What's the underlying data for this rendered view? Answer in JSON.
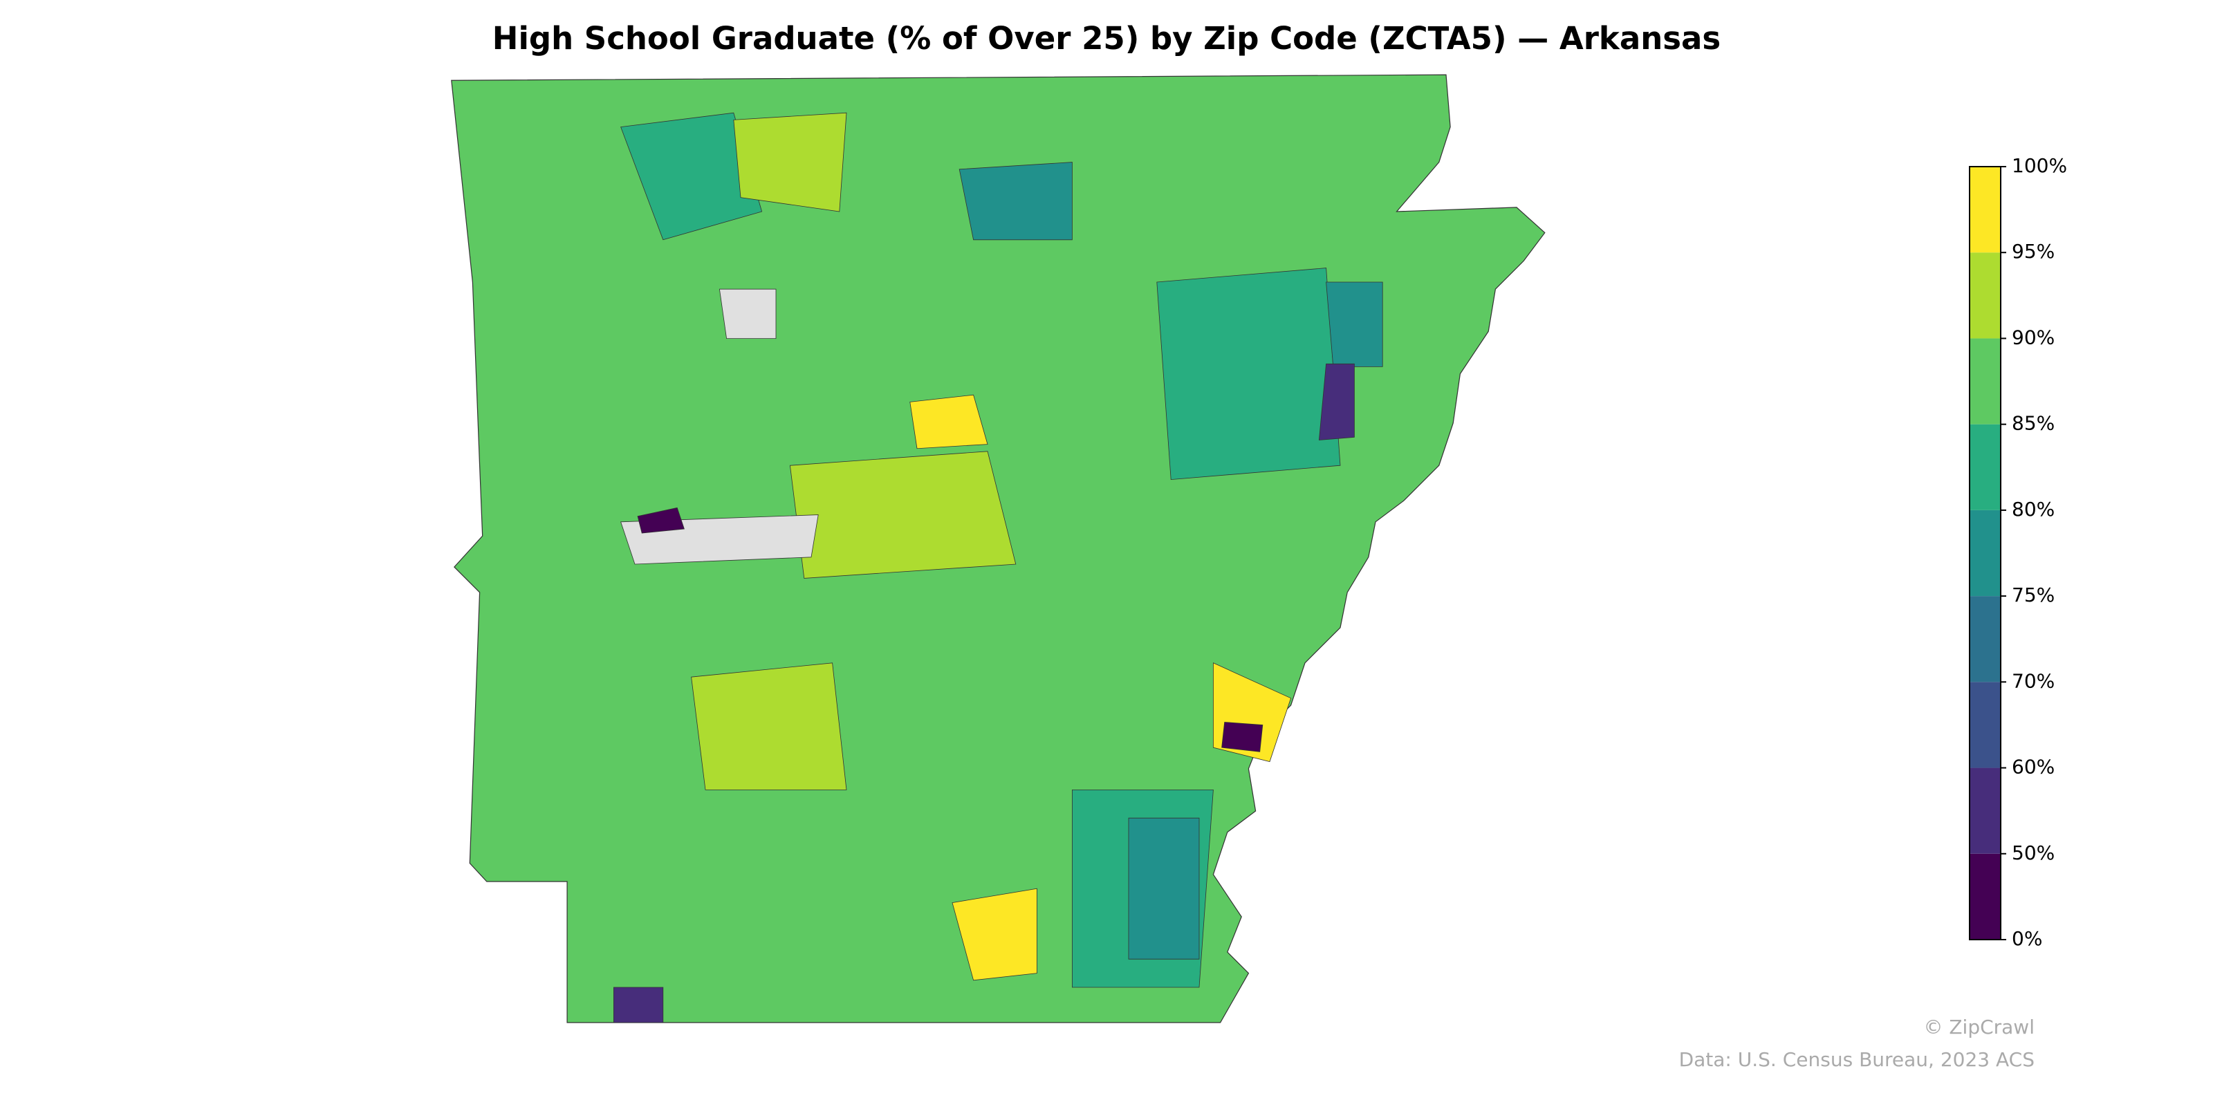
{
  "chart_data": {
    "type": "choropleth",
    "title": "High School Graduate (% of Over 25) by Zip Code (ZCTA5) — Arkansas",
    "colorbar_ticks": [
      {
        "value": 0,
        "label": "0%"
      },
      {
        "value": 50,
        "label": "50%"
      },
      {
        "value": 60,
        "label": "60%"
      },
      {
        "value": 70,
        "label": "70%"
      },
      {
        "value": 75,
        "label": "75%"
      },
      {
        "value": 80,
        "label": "80%"
      },
      {
        "value": 85,
        "label": "85%"
      },
      {
        "value": 90,
        "label": "90%"
      },
      {
        "value": 95,
        "label": "95%"
      },
      {
        "value": 100,
        "label": "100%"
      }
    ],
    "colorbar_colors": [
      "#440154",
      "#472d7b",
      "#3b528b",
      "#2c728e",
      "#21918c",
      "#28ae80",
      "#5ec962",
      "#addc30",
      "#fde725"
    ],
    "credit": "© ZipCrawl",
    "source": "Data: U.S. Census Bureau, 2023 ACS"
  }
}
